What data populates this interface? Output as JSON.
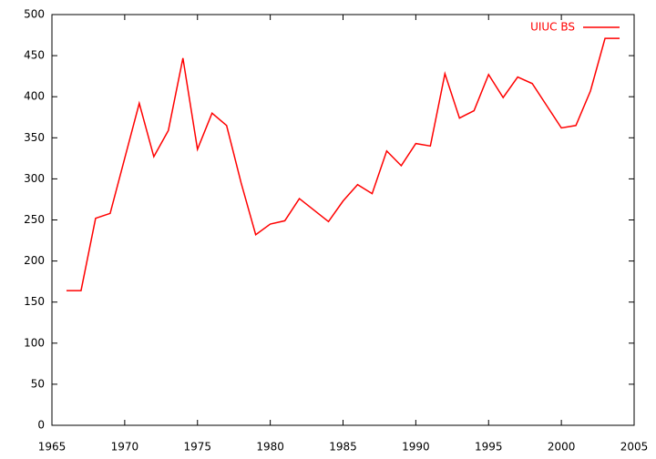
{
  "chart_data": {
    "type": "line",
    "x": [
      1966,
      1967,
      1968,
      1969,
      1970,
      1971,
      1972,
      1973,
      1974,
      1975,
      1976,
      1977,
      1978,
      1979,
      1980,
      1981,
      1982,
      1983,
      1984,
      1985,
      1986,
      1987,
      1988,
      1989,
      1990,
      1991,
      1992,
      1993,
      1994,
      1995,
      1996,
      1997,
      1998,
      1999,
      2000,
      2001,
      2002,
      2003,
      2004
    ],
    "series": [
      {
        "name": "UIUC BS",
        "color": "#ff0000",
        "values": [
          164,
          164,
          252,
          258,
          325,
          392,
          327,
          359,
          447,
          336,
          380,
          365,
          295,
          232,
          245,
          249,
          276,
          262,
          248,
          273,
          293,
          282,
          334,
          316,
          343,
          340,
          428,
          374,
          383,
          427,
          399,
          424,
          416,
          389,
          362,
          365,
          407,
          471,
          471
        ]
      }
    ],
    "xlim": [
      1965,
      2005
    ],
    "xticks": [
      1965,
      1970,
      1975,
      1980,
      1985,
      1990,
      1995,
      2000,
      2005
    ],
    "ylim": [
      0,
      500
    ],
    "yticks": [
      0,
      50,
      100,
      150,
      200,
      250,
      300,
      350,
      400,
      450,
      500
    ],
    "legend": "top-right"
  }
}
